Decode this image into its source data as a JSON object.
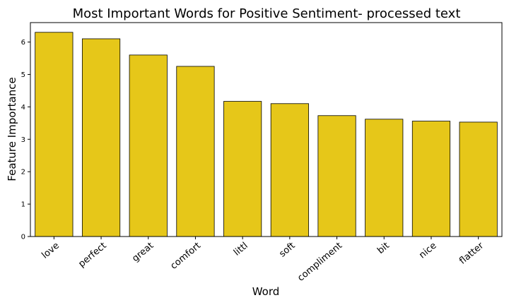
{
  "chart_data": {
    "type": "bar",
    "title": "Most Important Words for Positive Sentiment- processed text",
    "xlabel": "Word",
    "ylabel": "Feature Importance",
    "categories": [
      "love",
      "perfect",
      "great",
      "comfort",
      "littl",
      "soft",
      "compliment",
      "bit",
      "nice",
      "flatter"
    ],
    "values": [
      6.3,
      6.1,
      5.6,
      5.25,
      4.17,
      4.1,
      3.73,
      3.62,
      3.56,
      3.53
    ],
    "ylim": [
      0,
      6.6
    ],
    "yticks": [
      "0",
      "1",
      "2",
      "3",
      "4",
      "5",
      "6"
    ],
    "bar_color": "#e6c719",
    "bar_edge_color": "#000000",
    "grid": false,
    "legend": "none"
  }
}
